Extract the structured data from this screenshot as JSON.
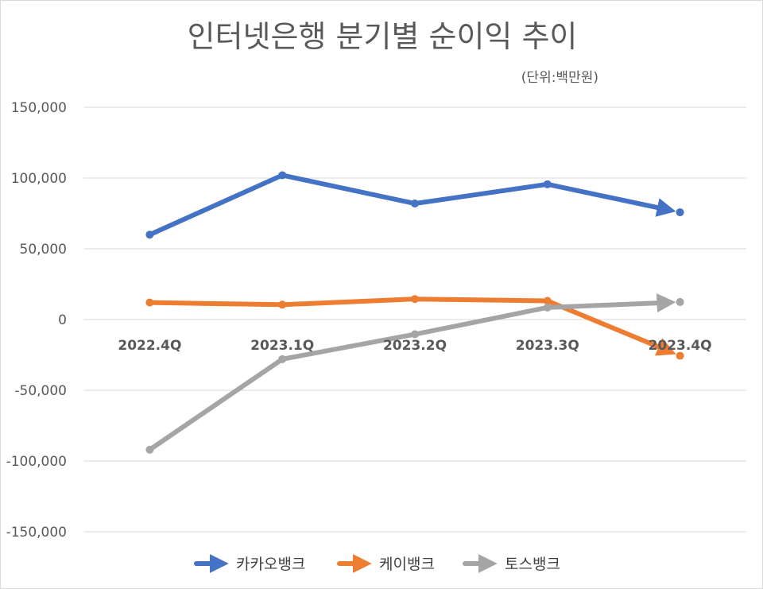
{
  "chart_data": {
    "type": "line",
    "title": "인터넷은행 분기별 순이익 추이",
    "subtitle": "(단위:백만원)",
    "categories": [
      "2022.4Q",
      "2023.1Q",
      "2023.2Q",
      "2023.3Q",
      "2023.4Q"
    ],
    "ylim": [
      -150000,
      150000
    ],
    "yticks": [
      150000,
      100000,
      50000,
      0,
      -50000,
      -100000,
      -150000
    ],
    "ytick_labels": [
      "150,000",
      "100,000",
      "50,000",
      "0",
      "-50,000",
      "-100,000",
      "-150,000"
    ],
    "grid": true,
    "legend_position": "bottom",
    "series": [
      {
        "name": "카카오뱅크",
        "color": "#4472C4",
        "values": [
          60000,
          102000,
          82000,
          95600,
          75800
        ]
      },
      {
        "name": "케이뱅크",
        "color": "#ED7D31",
        "values": [
          12000,
          10500,
          14500,
          13200,
          -25600
        ]
      },
      {
        "name": "토스뱅크",
        "color": "#A5A5A5",
        "values": [
          -92000,
          -28000,
          -10400,
          8500,
          12400
        ]
      }
    ]
  }
}
